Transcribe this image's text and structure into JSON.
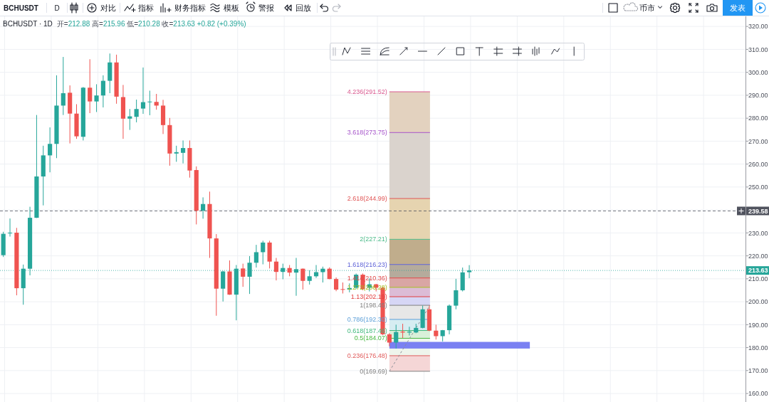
{
  "chart_data": {
    "type": "candlestick",
    "title": "BCHUSDT · 1D",
    "subtitle": "开=212.88 高=215.96 低=210.28 收=213.63 +0.82 (+0.39%)",
    "annotations": [
      "BCHUSDT",
      "D",
      "对比",
      "指标",
      "财务指标",
      "模板",
      "警报",
      "回放",
      "币市",
      "发表"
    ],
    "categories": [
      null,
      null,
      null,
      null,
      null,
      null,
      null,
      null,
      null,
      null,
      null,
      null,
      null,
      null,
      null,
      null,
      null,
      null,
      null,
      null,
      null,
      null,
      null,
      null,
      null,
      null,
      null,
      null,
      null,
      null,
      null,
      null,
      null,
      null,
      null,
      null,
      null,
      null,
      null,
      null,
      null,
      null,
      null,
      null,
      null,
      null,
      null,
      null,
      null,
      null,
      null,
      null,
      null,
      null,
      null,
      null,
      null,
      null,
      null,
      null,
      null,
      null,
      null,
      null,
      null,
      null,
      null,
      null,
      null,
      null,
      null,
      null,
      null,
      null,
      null,
      null,
      null,
      null,
      null,
      null,
      null,
      null,
      null,
      null,
      null,
      null,
      null,
      null,
      null,
      null,
      null,
      null,
      null,
      null,
      null,
      null,
      null,
      null,
      null,
      null,
      null,
      null,
      null,
      null,
      null,
      null,
      null,
      null,
      null,
      null,
      null,
      null
    ],
    "ohlc": [
      [
        220.3,
        230.5,
        219.5,
        229.6
      ],
      [
        229.8,
        236.3,
        228.4,
        230.1
      ],
      [
        230.1,
        232.2,
        202.8,
        205.9
      ],
      [
        205.9,
        216.2,
        198.7,
        214.4
      ],
      [
        214.4,
        241.4,
        211.5,
        236.6
      ],
      [
        236.6,
        281.4,
        236.5,
        254.6
      ],
      [
        254.6,
        268.0,
        242.0,
        263.8
      ],
      [
        263.8,
        276.0,
        256.4,
        268.8
      ],
      [
        268.8,
        298.7,
        262.6,
        285.5
      ],
      [
        285.5,
        306.7,
        281.4,
        290.9
      ],
      [
        291.1,
        294.3,
        269.0,
        282.0
      ],
      [
        282.0,
        286.1,
        271.0,
        272.1
      ],
      [
        271.9,
        293.6,
        270.3,
        293.3
      ],
      [
        293.3,
        305.7,
        282.2,
        287.3
      ],
      [
        287.3,
        294.8,
        282.7,
        289.9
      ],
      [
        289.9,
        298.7,
        284.7,
        296.3
      ],
      [
        296.3,
        308.2,
        290.9,
        304.3
      ],
      [
        304.3,
        307.7,
        286.3,
        289.4
      ],
      [
        289.2,
        294.5,
        271.0,
        279.8
      ],
      [
        279.8,
        284.0,
        274.9,
        280.8
      ],
      [
        280.6,
        288.1,
        278.2,
        284.0
      ],
      [
        284.2,
        302.1,
        281.9,
        287.0
      ],
      [
        287.0,
        292.0,
        281.3,
        287.2
      ],
      [
        287.1,
        290.6,
        283.7,
        285.5
      ],
      [
        285.5,
        288.0,
        273.1,
        277.0
      ],
      [
        277.0,
        280.1,
        259.3,
        264.6
      ],
      [
        264.6,
        268.0,
        261.0,
        265.2
      ],
      [
        264.9,
        270.3,
        260.3,
        267.0
      ],
      [
        267.0,
        270.3,
        254.1,
        257.2
      ],
      [
        257.4,
        259.0,
        233.7,
        239.7
      ],
      [
        239.7,
        245.5,
        236.2,
        242.6
      ],
      [
        242.6,
        248.0,
        219.1,
        227.6
      ],
      [
        227.6,
        229.5,
        193.9,
        205.7
      ],
      [
        205.7,
        213.5,
        200.1,
        213.2
      ],
      [
        213.2,
        218.0,
        203.0,
        203.1
      ],
      [
        203.1,
        216.0,
        191.9,
        214.4
      ],
      [
        214.5,
        216.6,
        206.5,
        210.9
      ],
      [
        210.9,
        219.9,
        203.4,
        217.0
      ],
      [
        217.0,
        224.8,
        214.9,
        221.6
      ],
      [
        221.6,
        226.6,
        216.3,
        225.8
      ],
      [
        225.8,
        226.6,
        214.5,
        217.5
      ],
      [
        217.5,
        219.1,
        209.3,
        213.0
      ],
      [
        213.0,
        216.6,
        209.8,
        214.7
      ],
      [
        214.7,
        216.0,
        211.1,
        212.7
      ],
      [
        212.7,
        219.1,
        202.6,
        214.2
      ],
      [
        214.4,
        214.5,
        205.3,
        209.1
      ],
      [
        209.1,
        213.7,
        207.5,
        211.1
      ],
      [
        211.1,
        216.0,
        210.4,
        212.9
      ],
      [
        212.9,
        215.3,
        208.4,
        214.4
      ],
      [
        214.4,
        215.0,
        209.8,
        209.9
      ],
      [
        209.9,
        210.6,
        204.6,
        205.3
      ],
      [
        205.5,
        208.4,
        203.6,
        205.2
      ],
      [
        205.3,
        208.0,
        204.1,
        206.0
      ],
      [
        206.1,
        212.3,
        205.5,
        211.8
      ],
      [
        211.8,
        212.3,
        205.0,
        205.5
      ],
      [
        206.1,
        210.2,
        204.5,
        207.6
      ],
      [
        207.6,
        207.8,
        204.5,
        206.1
      ],
      [
        206.1,
        206.6,
        185.5,
        185.8
      ],
      [
        185.8,
        186.3,
        180.6,
        182.2
      ],
      [
        182.2,
        190.0,
        179.6,
        186.8
      ],
      [
        187.0,
        190.4,
        184.2,
        186.6
      ],
      [
        186.6,
        189.1,
        185.3,
        187.0
      ],
      [
        186.6,
        190.4,
        186.3,
        188.6
      ],
      [
        188.6,
        198.3,
        188.4,
        196.7
      ],
      [
        196.7,
        198.3,
        187.2,
        187.4
      ],
      [
        187.4,
        190.0,
        183.5,
        185.0
      ],
      [
        185.0,
        187.7,
        182.7,
        187.6
      ],
      [
        187.6,
        198.8,
        185.8,
        198.3
      ],
      [
        198.3,
        210.0,
        196.7,
        205.0
      ],
      [
        205.0,
        214.9,
        204.5,
        212.8
      ],
      [
        212.88,
        215.96,
        210.28,
        213.63
      ],
      null,
      null,
      null,
      null,
      null,
      null,
      null,
      null,
      null,
      null,
      null,
      null,
      null,
      null,
      null,
      null,
      null,
      null,
      null,
      null,
      null,
      null,
      null,
      null,
      null,
      null,
      null,
      null,
      null,
      null,
      null,
      null,
      null,
      null,
      null,
      null,
      null,
      null,
      null,
      null,
      null
    ],
    "colors": [
      "#26a69a",
      "#26a69a",
      "#ef5350",
      "#26a69a",
      "#26a69a",
      "#26a69a",
      "#26a69a",
      "#26a69a",
      "#26a69a",
      "#26a69a",
      "#ef5350",
      "#ef5350",
      "#26a69a",
      "#ef5350",
      "#26a69a",
      "#26a69a",
      "#26a69a",
      "#ef5350",
      "#ef5350",
      "#26a69a",
      "#26a69a",
      "#26a69a",
      "#26a69a",
      "#ef5350",
      "#ef5350",
      "#ef5350",
      "#26a69a",
      "#26a69a",
      "#ef5350",
      "#ef5350",
      "#26a69a",
      "#ef5350",
      "#ef5350",
      "#26a69a",
      "#ef5350",
      "#26a69a",
      "#ef5350",
      "#26a69a",
      "#26a69a",
      "#26a69a",
      "#ef5350",
      "#ef5350",
      "#26a69a",
      "#ef5350",
      "#26a69a",
      "#ef5350",
      "#26a69a",
      "#26a69a",
      "#26a69a",
      "#ef5350",
      "#ef5350",
      "#ef5350",
      "#26a69a",
      "#26a69a",
      "#ef5350",
      "#26a69a",
      "#ef5350",
      "#ef5350",
      "#ef5350",
      "#26a69a",
      "#ef5350",
      "#26a69a",
      "#26a69a",
      "#26a69a",
      "#ef5350",
      "#ef5350",
      "#26a69a",
      "#26a69a",
      "#26a69a",
      "#26a69a",
      "#26a69a",
      null,
      null,
      null,
      null,
      null,
      null,
      null,
      null,
      null,
      null,
      null,
      null,
      null,
      null,
      null,
      null,
      null,
      null,
      null,
      null,
      null,
      null,
      null,
      null,
      null,
      null,
      null,
      null,
      null,
      null,
      null,
      null,
      null,
      null,
      null,
      null,
      null,
      null,
      null,
      null,
      null
    ],
    "ylim": [
      156.3,
      324.7
    ],
    "yticks": [
      {
        "value": 160,
        "label": "160.00"
      },
      {
        "value": 170,
        "label": "170.00"
      },
      {
        "value": 180,
        "label": "180.00"
      },
      {
        "value": 190,
        "label": "190.00"
      },
      {
        "value": 200,
        "label": "200.00"
      },
      {
        "value": 210,
        "label": "210.00"
      },
      {
        "value": 220,
        "label": "220.00"
      },
      {
        "value": 230,
        "label": "230.00"
      },
      {
        "value": 240,
        "label": null
      },
      {
        "value": 250,
        "label": "250.00"
      },
      {
        "value": 260,
        "label": "260.00"
      },
      {
        "value": 270,
        "label": "270.00"
      },
      {
        "value": 280,
        "label": "280.00"
      },
      {
        "value": 290,
        "label": "290.00"
      },
      {
        "value": 300,
        "label": "300.00"
      },
      {
        "value": 310,
        "label": "310.00"
      },
      {
        "value": 320,
        "label": "320.00"
      }
    ],
    "tick_labels": "y",
    "grid": true,
    "bands": [
      {
        "axis": "y",
        "from": 169.69,
        "to": 176.48,
        "color": "#f5d6d6"
      },
      {
        "axis": "y",
        "from": 176.48,
        "to": 184.07,
        "color": "#eef5ec"
      },
      {
        "axis": "y",
        "from": 184.07,
        "to": 187.46,
        "color": "#d9f0d9"
      },
      {
        "axis": "y",
        "from": 187.46,
        "to": 192.3,
        "color": "#d6edf2"
      },
      {
        "axis": "y",
        "from": 192.3,
        "to": 198.45,
        "color": "#e7e7e7"
      },
      {
        "axis": "y",
        "from": 198.45,
        "to": 202.19,
        "color": "#d6d6f5"
      },
      {
        "axis": "y",
        "from": 202.19,
        "to": 206.28,
        "color": "#dcbcd6"
      },
      {
        "axis": "y",
        "from": 206.28,
        "to": 210.36,
        "color": "#d9a6a4"
      },
      {
        "axis": "y",
        "from": 210.36,
        "to": 216.23,
        "color": "#b5ab9c"
      },
      {
        "axis": "y",
        "from": 216.23,
        "to": 227.21,
        "color": "#c0ad8c"
      },
      {
        "axis": "y",
        "from": 227.21,
        "to": 244.99,
        "color": "#e6d4b0"
      },
      {
        "axis": "y",
        "from": 244.99,
        "to": 273.75,
        "color": "#dad3cd"
      },
      {
        "axis": "y",
        "from": 273.75,
        "to": 291.52,
        "color": "#e3d2bf"
      },
      {
        "axis": "y",
        "from": 179.6,
        "to": 182.5,
        "color": "#7a80f2"
      }
    ],
    "ref_lines": [
      {
        "axis": "y",
        "value": 291.52,
        "label": "4.236(291.52)",
        "color": "#d9598f"
      },
      {
        "axis": "y",
        "value": 273.75,
        "label": "3.618(273.75)",
        "color": "#a552c9"
      },
      {
        "axis": "y",
        "value": 244.99,
        "label": "2.618(244.99)",
        "color": "#e05555"
      },
      {
        "axis": "y",
        "value": 227.21,
        "label": "2(227.21)",
        "color": "#4cbb8a"
      },
      {
        "axis": "y",
        "value": 216.23,
        "label": "1.618(216.23)",
        "color": "#5b5fd6"
      },
      {
        "axis": "y",
        "value": 210.36,
        "label": "1.414(210.36)",
        "color": "#e04848"
      },
      {
        "axis": "y",
        "value": 206.28,
        "label": "1.272(206.28)",
        "color": "#a3bd1e"
      },
      {
        "axis": "y",
        "value": 202.19,
        "label": "1.13(202.19)",
        "color": "#e23d3d"
      },
      {
        "axis": "y",
        "value": 198.45,
        "label": "1(198.45)",
        "color": "#808080"
      },
      {
        "axis": "y",
        "value": 192.3,
        "label": "0.786(192.30)",
        "color": "#5c9fd8"
      },
      {
        "axis": "y",
        "value": 187.46,
        "label": "0.618(187.46)",
        "color": "#3fb87c"
      },
      {
        "axis": "y",
        "value": 184.07,
        "label": "0.5(184.07)",
        "color": "#47b840"
      },
      {
        "axis": "y",
        "value": 176.48,
        "label": "0.236(176.48)",
        "color": "#e05a5a"
      },
      {
        "axis": "y",
        "value": 169.69,
        "label": "0(169.69)",
        "color": "#808080"
      },
      {
        "axis": "y",
        "value": 239.58,
        "label": "239.58",
        "color": "#50535e",
        "line_style": "dashed"
      },
      {
        "axis": "y",
        "value": 213.63,
        "label": "213.63",
        "color": "#26a69a",
        "line_style": "dotted"
      }
    ]
  }
}
